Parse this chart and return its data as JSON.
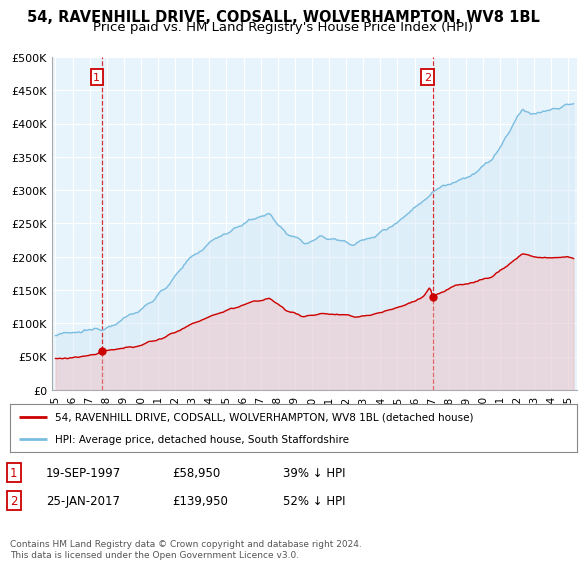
{
  "title": "54, RAVENHILL DRIVE, CODSALL, WOLVERHAMPTON, WV8 1BL",
  "subtitle": "Price paid vs. HM Land Registry's House Price Index (HPI)",
  "ylabel_ticks": [
    "£0",
    "£50K",
    "£100K",
    "£150K",
    "£200K",
    "£250K",
    "£300K",
    "£350K",
    "£400K",
    "£450K",
    "£500K"
  ],
  "ytick_values": [
    0,
    50000,
    100000,
    150000,
    200000,
    250000,
    300000,
    350000,
    400000,
    450000,
    500000
  ],
  "ylim": [
    0,
    500000
  ],
  "xlim_start": 1994.8,
  "xlim_end": 2025.5,
  "xtick_years": [
    1995,
    1996,
    1997,
    1998,
    1999,
    2000,
    2001,
    2002,
    2003,
    2004,
    2005,
    2006,
    2007,
    2008,
    2009,
    2010,
    2011,
    2012,
    2013,
    2014,
    2015,
    2016,
    2017,
    2018,
    2019,
    2020,
    2021,
    2022,
    2023,
    2024,
    2025
  ],
  "hpi_color": "#7abde0",
  "hpi_fill_color": "#d6eaf8",
  "price_color": "#cc0000",
  "marker_color": "#cc0000",
  "sale1_x": 1997.72,
  "sale1_y": 58950,
  "sale1_label": "1",
  "sale2_x": 2017.07,
  "sale2_y": 139950,
  "sale2_label": "2",
  "legend_line1": "54, RAVENHILL DRIVE, CODSALL, WOLVERHAMPTON, WV8 1BL (detached house)",
  "legend_line2": "HPI: Average price, detached house, South Staffordshire",
  "annotation1_date": "19-SEP-1997",
  "annotation1_price": "£58,950",
  "annotation1_hpi": "39% ↓ HPI",
  "annotation2_date": "25-JAN-2017",
  "annotation2_price": "£139,950",
  "annotation2_hpi": "52% ↓ HPI",
  "footer": "Contains HM Land Registry data © Crown copyright and database right 2024.\nThis data is licensed under the Open Government Licence v3.0.",
  "bg_color": "#ffffff",
  "plot_bg_color": "#e8f4fc",
  "grid_color": "#ffffff",
  "title_fontsize": 10.5,
  "subtitle_fontsize": 9.5
}
